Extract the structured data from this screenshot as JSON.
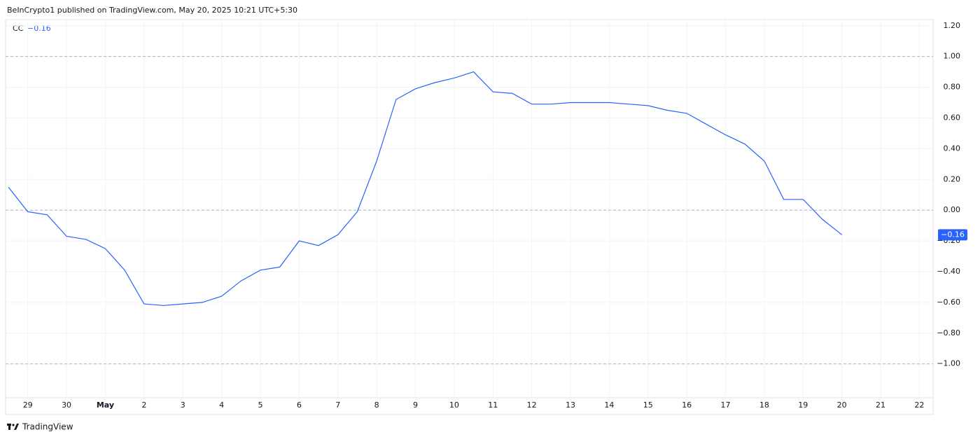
{
  "header": {
    "attribution": "BeInCrypto1 published on TradingView.com, May 20, 2025 10:21 UTC+5:30"
  },
  "footer": {
    "brand": "TradingView"
  },
  "chart_data": {
    "type": "line",
    "categories": [
      null,
      "29",
      null,
      "30",
      null,
      "May",
      null,
      "2",
      null,
      "3",
      null,
      "4",
      null,
      "5",
      null,
      "6",
      null,
      "7",
      null,
      "8",
      null,
      "9",
      null,
      "10",
      null,
      "11",
      null,
      "12",
      null,
      "13",
      null,
      "14",
      null,
      "15",
      null,
      "16",
      null,
      "17",
      null,
      "18",
      null,
      "19",
      null,
      "20",
      null,
      "21",
      null,
      "22"
    ],
    "series": [
      {
        "name": "CC",
        "color": "#2962ff",
        "values": [
          0.15,
          -0.01,
          -0.03,
          -0.17,
          -0.19,
          -0.25,
          -0.39,
          -0.61,
          -0.62,
          -0.61,
          -0.6,
          -0.56,
          -0.46,
          -0.39,
          -0.37,
          -0.2,
          -0.23,
          -0.16,
          -0.01,
          0.32,
          0.72,
          0.79,
          0.83,
          0.86,
          0.9,
          0.77,
          0.76,
          0.69,
          0.69,
          0.7,
          0.7,
          0.7,
          0.69,
          0.68,
          0.65,
          0.63,
          0.56,
          0.49,
          0.43,
          0.32,
          0.07,
          0.07,
          -0.06,
          -0.16,
          null,
          null,
          null,
          null
        ],
        "last_label": {
          "value": -0.16,
          "label": "−0.16"
        }
      }
    ],
    "ylim": [
      -1.22,
      1.24
    ],
    "yticks": [
      {
        "value": 1.2,
        "label": "1.20"
      },
      {
        "value": 1,
        "label": "1.00"
      },
      {
        "value": 0.8,
        "label": "0.80"
      },
      {
        "value": 0.6,
        "label": "0.60"
      },
      {
        "value": 0.4,
        "label": "0.40"
      },
      {
        "value": 0.2,
        "label": "0.20"
      },
      {
        "value": 0,
        "label": "0.00"
      },
      {
        "value": -0.2,
        "label": "−0.20"
      },
      {
        "value": -0.4,
        "label": "−0.40"
      },
      {
        "value": -0.6,
        "label": "−0.60"
      },
      {
        "value": -0.8,
        "label": "−0.80"
      },
      {
        "value": -1,
        "label": "−1.00"
      }
    ],
    "levels": [
      1,
      0,
      -1
    ],
    "grid": true
  }
}
